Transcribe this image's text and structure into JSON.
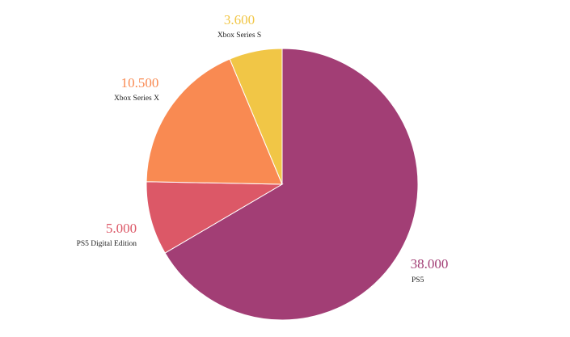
{
  "chart_data": {
    "type": "pie",
    "start_angle_deg": 0,
    "direction": "clockwise",
    "slices": [
      {
        "label": "PS5",
        "value": 38000,
        "value_text": "38.000",
        "color": "#a23e75"
      },
      {
        "label": "PS5 Digital Edition",
        "value": 5000,
        "value_text": "5.000",
        "color": "#dc5867"
      },
      {
        "label": "Xbox Series X",
        "value": 10500,
        "value_text": "10.500",
        "color": "#f98a52"
      },
      {
        "label": "Xbox Series S",
        "value": 3600,
        "value_text": "3.600",
        "color": "#f1c646"
      }
    ],
    "legend": "none",
    "grid": false
  }
}
